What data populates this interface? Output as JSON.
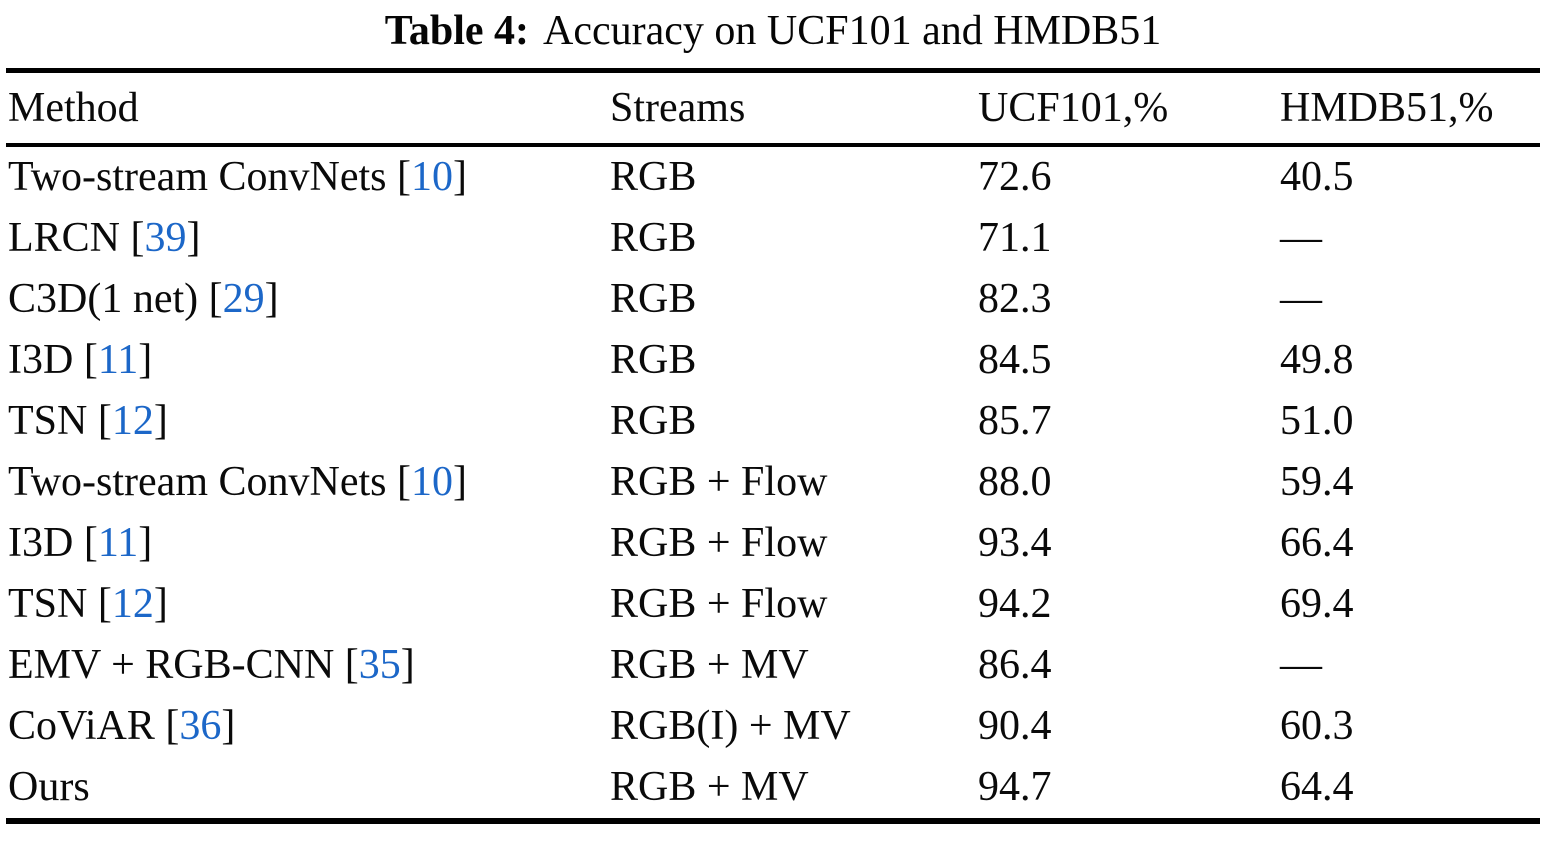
{
  "caption": {
    "label": "Table 4:",
    "text": "Accuracy on UCF101 and HMDB51"
  },
  "accent": {
    "citation_color": "#1c67c8"
  },
  "table": {
    "columns": [
      "Method",
      "Streams",
      "UCF101,%",
      "HMDB51,%"
    ],
    "rows": [
      {
        "method": "Two-stream ConvNets",
        "cite": "10",
        "streams": "RGB",
        "ucf101": "72.6",
        "hmdb51": "40.5"
      },
      {
        "method": "LRCN",
        "cite": "39",
        "streams": "RGB",
        "ucf101": "71.1",
        "hmdb51": "—"
      },
      {
        "method": "C3D(1 net)",
        "cite": "29",
        "streams": "RGB",
        "ucf101": "82.3",
        "hmdb51": "—"
      },
      {
        "method": "I3D",
        "cite": "11",
        "streams": "RGB",
        "ucf101": "84.5",
        "hmdb51": "49.8"
      },
      {
        "method": "TSN",
        "cite": "12",
        "streams": "RGB",
        "ucf101": "85.7",
        "hmdb51": "51.0"
      },
      {
        "method": "Two-stream ConvNets",
        "cite": "10",
        "streams": "RGB + Flow",
        "ucf101": "88.0",
        "hmdb51": "59.4"
      },
      {
        "method": "I3D",
        "cite": "11",
        "streams": "RGB + Flow",
        "ucf101": "93.4",
        "hmdb51": "66.4"
      },
      {
        "method": "TSN",
        "cite": "12",
        "streams": "RGB + Flow",
        "ucf101": "94.2",
        "hmdb51": "69.4"
      },
      {
        "method": "EMV + RGB-CNN",
        "cite": "35",
        "streams": "RGB + MV",
        "ucf101": "86.4",
        "hmdb51": "—"
      },
      {
        "method": "CoViAR",
        "cite": "36",
        "streams": "RGB(I) + MV",
        "ucf101": "90.4",
        "hmdb51": "60.3"
      },
      {
        "method": "Ours",
        "cite": "",
        "streams": "RGB + MV",
        "ucf101": "94.7",
        "hmdb51": "64.4"
      }
    ]
  }
}
